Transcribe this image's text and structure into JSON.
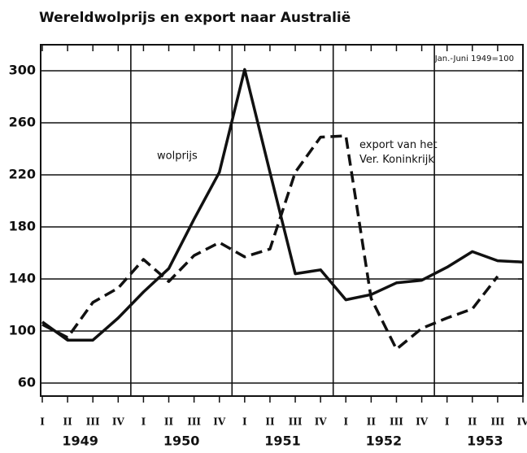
{
  "chart_data": {
    "type": "line",
    "title": "Wereldwolprijs en export naar Australië",
    "note": "Jan.-Juni 1949=100",
    "categories": [
      "I",
      "II",
      "III",
      "IV",
      "I",
      "II",
      "III",
      "IV",
      "I",
      "II",
      "III",
      "IV",
      "I",
      "II",
      "III",
      "IV",
      "I",
      "II",
      "III",
      "IV"
    ],
    "year_labels": [
      "1949",
      "1950",
      "1951",
      "1952",
      "1953"
    ],
    "series": [
      {
        "name": "wolprijs",
        "color": "#111111",
        "dash": "solid",
        "values": [
          107,
          93,
          93,
          110,
          130,
          148,
          186,
          222,
          301,
          222,
          144,
          147,
          124,
          128,
          137,
          139,
          149,
          161,
          154,
          153
        ]
      },
      {
        "name": "export van het Ver. Koninkrijk",
        "color": "#111111",
        "dash": "dashed",
        "values": [
          105,
          95,
          122,
          133,
          155,
          138,
          158,
          168,
          157,
          163,
          222,
          249,
          250,
          125,
          86,
          102,
          110,
          117,
          142,
          null
        ]
      }
    ],
    "ylim": [
      50,
      320
    ],
    "yticks": [
      60,
      100,
      140,
      180,
      220,
      260,
      300
    ],
    "grid": true
  }
}
